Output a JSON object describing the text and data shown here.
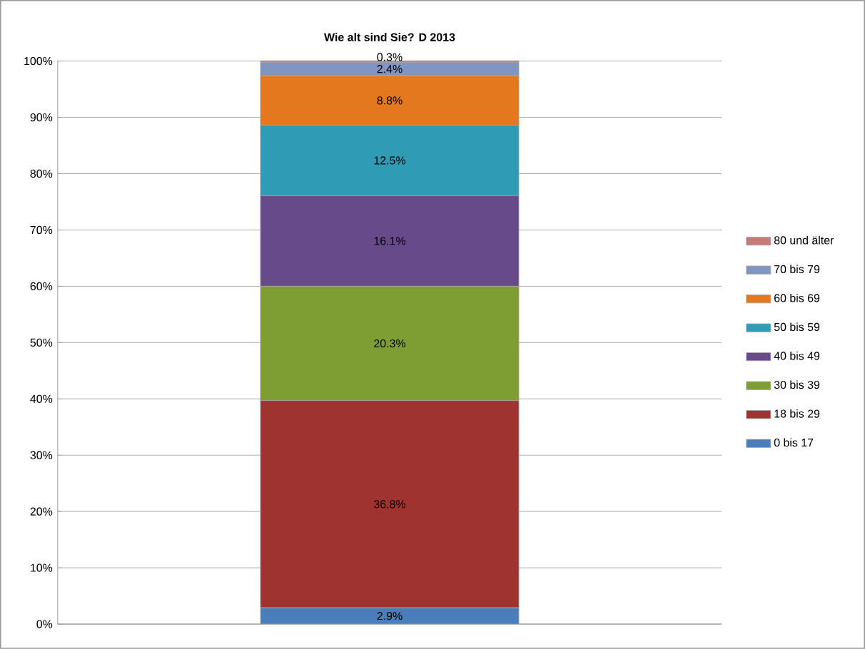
{
  "chart_data": {
    "type": "bar",
    "stacked": true,
    "title": "Wie alt sind Sie? D 2013",
    "categories": [
      null
    ],
    "series": [
      {
        "name": "0 bis 17",
        "color": "#4a7ebb",
        "values": [
          2.9
        ],
        "value_labels": [
          "2.9%"
        ]
      },
      {
        "name": "18 bis 29",
        "color": "#9e3330",
        "values": [
          36.8
        ],
        "value_labels": [
          "36.8%"
        ]
      },
      {
        "name": "30 bis 39",
        "color": "#7e9d32",
        "values": [
          20.3
        ],
        "value_labels": [
          "20.3%"
        ]
      },
      {
        "name": "40 bis 49",
        "color": "#674a8a",
        "values": [
          16.1
        ],
        "value_labels": [
          "16.1%"
        ]
      },
      {
        "name": "50 bis 59",
        "color": "#2f9bb5",
        "values": [
          12.5
        ],
        "value_labels": [
          "12.5%"
        ]
      },
      {
        "name": "60 bis 69",
        "color": "#e3781e",
        "values": [
          8.8
        ],
        "value_labels": [
          "8.8%"
        ]
      },
      {
        "name": "70 bis 79",
        "color": "#8095c2",
        "values": [
          2.4
        ],
        "value_labels": [
          "2.4%"
        ]
      },
      {
        "name": "80 und älter",
        "color": "#c47a78",
        "values": [
          0.3
        ],
        "value_labels": [
          "0.3%"
        ]
      }
    ],
    "ylim": [
      0,
      100.1
    ],
    "yticks": [
      {
        "value": 0,
        "label": "0%"
      },
      {
        "value": 10,
        "label": "10%"
      },
      {
        "value": 20,
        "label": "20%"
      },
      {
        "value": 30,
        "label": "30%"
      },
      {
        "value": 40,
        "label": "40%"
      },
      {
        "value": 50,
        "label": "50%"
      },
      {
        "value": 60,
        "label": "60%"
      },
      {
        "value": 70,
        "label": "70%"
      },
      {
        "value": 80,
        "label": "80%"
      },
      {
        "value": 90,
        "label": "90%"
      },
      {
        "value": 100,
        "label": "100%"
      }
    ],
    "grid": "y",
    "legend": "right",
    "tick_labels": "y"
  }
}
